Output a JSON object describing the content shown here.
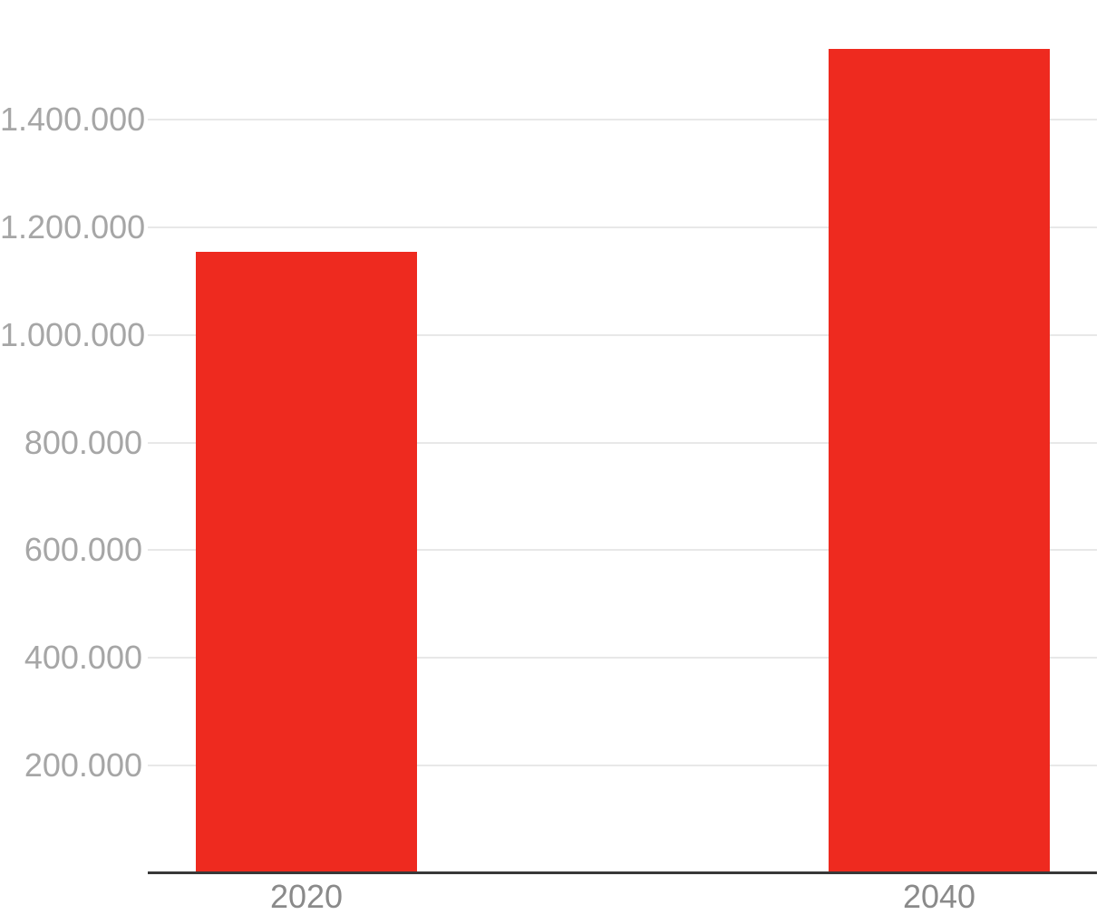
{
  "chart_data": {
    "type": "bar",
    "title": "",
    "xlabel": "",
    "ylabel": "",
    "categories": [
      "2020",
      "2040"
    ],
    "values": [
      1154000,
      1532000
    ],
    "ylim": [
      0,
      1550000
    ],
    "grid": true,
    "legend": false,
    "yticks": [
      {
        "value": 200000,
        "label": "200.000"
      },
      {
        "value": 400000,
        "label": "400.000"
      },
      {
        "value": 600000,
        "label": "600.000"
      },
      {
        "value": 800000,
        "label": "800.000"
      },
      {
        "value": 1000000,
        "label": "1.000.000"
      },
      {
        "value": 1200000,
        "label": "1.200.000"
      },
      {
        "value": 1400000,
        "label": "1.400.000"
      }
    ],
    "colors": {
      "bar": "#ee2a1f",
      "gridline": "#e8e8e8",
      "axis_line": "#383838",
      "y_tick_label": "#a6a6a6",
      "x_tick_label": "#8a8a8a"
    }
  }
}
